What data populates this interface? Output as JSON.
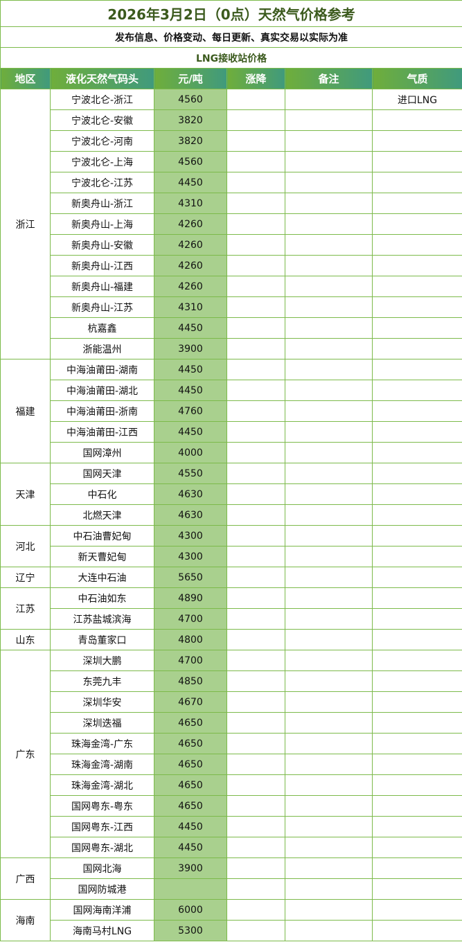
{
  "title": "2026年3月2日（0点）天然气价格参考",
  "subtitle": "发布信息、价格变动、每日更新、真实交易以实际为准",
  "section": "LNG接收站价格",
  "columns": [
    "地区",
    "液化天然气码头",
    "元/吨",
    "涨降",
    "备注",
    "气质"
  ],
  "colors": {
    "border": "#7cba4a",
    "price_bg": "#a9d08e",
    "header_start": "#6fae3b",
    "header_end": "#409a7d",
    "title": "#3b5a1d"
  },
  "regions": [
    {
      "name": "浙江",
      "rows": [
        {
          "terminal": "宁波北仑-浙江",
          "price": "4560",
          "change": "",
          "note": "",
          "quality": "进口LNG"
        },
        {
          "terminal": "宁波北仑-安徽",
          "price": "3820",
          "change": "",
          "note": "",
          "quality": ""
        },
        {
          "terminal": "宁波北仑-河南",
          "price": "3820",
          "change": "",
          "note": "",
          "quality": ""
        },
        {
          "terminal": "宁波北仑-上海",
          "price": "4560",
          "change": "",
          "note": "",
          "quality": ""
        },
        {
          "terminal": "宁波北仑-江苏",
          "price": "4450",
          "change": "",
          "note": "",
          "quality": ""
        },
        {
          "terminal": "新奥舟山-浙江",
          "price": "4310",
          "change": "",
          "note": "",
          "quality": ""
        },
        {
          "terminal": "新奥舟山-上海",
          "price": "4260",
          "change": "",
          "note": "",
          "quality": ""
        },
        {
          "terminal": "新奥舟山-安徽",
          "price": "4260",
          "change": "",
          "note": "",
          "quality": ""
        },
        {
          "terminal": "新奥舟山-江西",
          "price": "4260",
          "change": "",
          "note": "",
          "quality": ""
        },
        {
          "terminal": "新奥舟山-福建",
          "price": "4260",
          "change": "",
          "note": "",
          "quality": ""
        },
        {
          "terminal": "新奥舟山-江苏",
          "price": "4310",
          "change": "",
          "note": "",
          "quality": ""
        },
        {
          "terminal": "杭嘉鑫",
          "price": "4450",
          "change": "",
          "note": "",
          "quality": ""
        },
        {
          "terminal": "浙能温州",
          "price": "3900",
          "change": "",
          "note": "",
          "quality": ""
        }
      ]
    },
    {
      "name": "福建",
      "rows": [
        {
          "terminal": "中海油莆田-湖南",
          "price": "4450",
          "change": "",
          "note": "",
          "quality": ""
        },
        {
          "terminal": "中海油莆田-湖北",
          "price": "4450",
          "change": "",
          "note": "",
          "quality": ""
        },
        {
          "terminal": "中海油莆田-浙南",
          "price": "4760",
          "change": "",
          "note": "",
          "quality": ""
        },
        {
          "terminal": "中海油莆田-江西",
          "price": "4450",
          "change": "",
          "note": "",
          "quality": ""
        },
        {
          "terminal": "国网漳州",
          "price": "4000",
          "change": "",
          "note": "",
          "quality": ""
        }
      ]
    },
    {
      "name": "天津",
      "rows": [
        {
          "terminal": "国网天津",
          "price": "4550",
          "change": "",
          "note": "",
          "quality": ""
        },
        {
          "terminal": "中石化",
          "price": "4630",
          "change": "",
          "note": "",
          "quality": ""
        },
        {
          "terminal": "北燃天津",
          "price": "4630",
          "change": "",
          "note": "",
          "quality": ""
        }
      ]
    },
    {
      "name": "河北",
      "rows": [
        {
          "terminal": "中石油曹妃甸",
          "price": "4300",
          "change": "",
          "note": "",
          "quality": ""
        },
        {
          "terminal": "新天曹妃甸",
          "price": "4300",
          "change": "",
          "note": "",
          "quality": ""
        }
      ]
    },
    {
      "name": "辽宁",
      "rows": [
        {
          "terminal": "大连中石油",
          "price": "5650",
          "change": "",
          "note": "",
          "quality": ""
        }
      ]
    },
    {
      "name": "江苏",
      "rows": [
        {
          "terminal": "中石油如东",
          "price": "4890",
          "change": "",
          "note": "",
          "quality": ""
        },
        {
          "terminal": "江苏盐城滨海",
          "price": "4700",
          "change": "",
          "note": "",
          "quality": ""
        }
      ]
    },
    {
      "name": "山东",
      "rows": [
        {
          "terminal": "青岛董家口",
          "price": "4800",
          "change": "",
          "note": "",
          "quality": ""
        }
      ]
    },
    {
      "name": "广东",
      "rows": [
        {
          "terminal": "深圳大鹏",
          "price": "4700",
          "change": "",
          "note": "",
          "quality": ""
        },
        {
          "terminal": "东莞九丰",
          "price": "4850",
          "change": "",
          "note": "",
          "quality": ""
        },
        {
          "terminal": "深圳华安",
          "price": "4670",
          "change": "",
          "note": "",
          "quality": ""
        },
        {
          "terminal": "深圳迭福",
          "price": "4650",
          "change": "",
          "note": "",
          "quality": ""
        },
        {
          "terminal": "珠海金湾-广东",
          "price": "4650",
          "change": "",
          "note": "",
          "quality": ""
        },
        {
          "terminal": "珠海金湾-湖南",
          "price": "4650",
          "change": "",
          "note": "",
          "quality": ""
        },
        {
          "terminal": "珠海金湾-湖北",
          "price": "4650",
          "change": "",
          "note": "",
          "quality": ""
        },
        {
          "terminal": "国网粤东-粤东",
          "price": "4650",
          "change": "",
          "note": "",
          "quality": ""
        },
        {
          "terminal": "国网粤东-江西",
          "price": "4450",
          "change": "",
          "note": "",
          "quality": ""
        },
        {
          "terminal": "国网粤东-湖北",
          "price": "4450",
          "change": "",
          "note": "",
          "quality": ""
        }
      ]
    },
    {
      "name": "广西",
      "rows": [
        {
          "terminal": "国网北海",
          "price": "3900",
          "change": "",
          "note": "",
          "quality": ""
        },
        {
          "terminal": "国网防城港",
          "price": "",
          "change": "",
          "note": "",
          "quality": ""
        }
      ]
    },
    {
      "name": "海南",
      "rows": [
        {
          "terminal": "国网海南洋浦",
          "price": "6000",
          "change": "",
          "note": "",
          "quality": ""
        },
        {
          "terminal": "海南马村LNG",
          "price": "5300",
          "change": "",
          "note": "",
          "quality": ""
        }
      ]
    }
  ]
}
